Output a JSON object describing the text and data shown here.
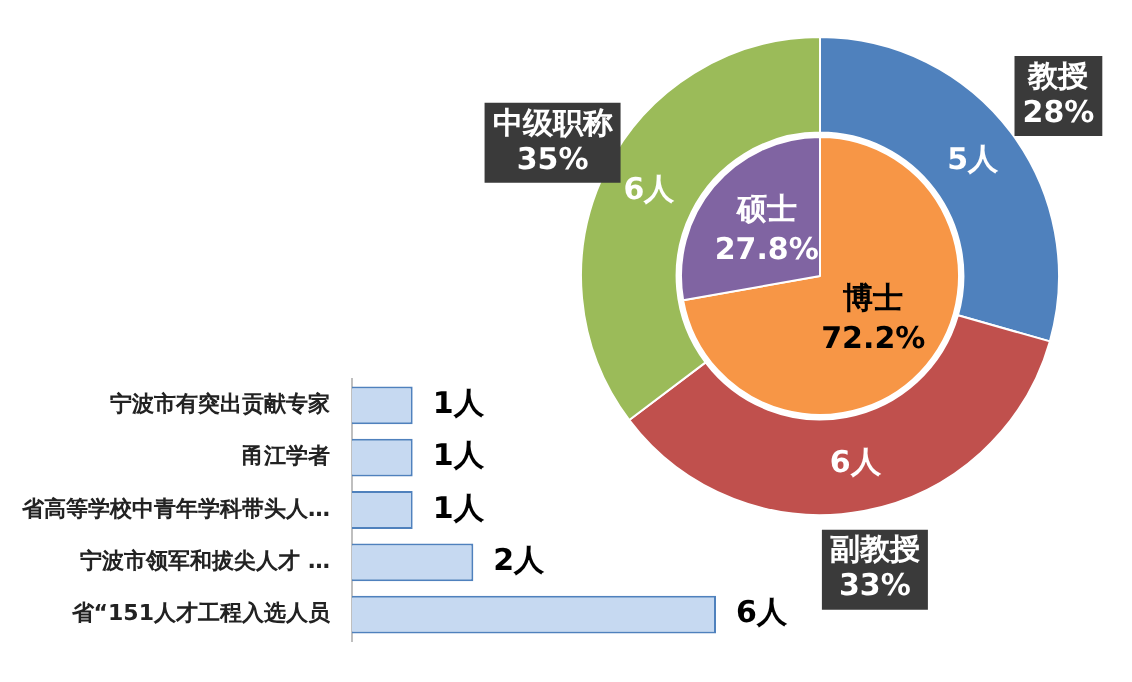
{
  "chart_data": [
    {
      "type": "donut",
      "categories": [
        "教授",
        "副教授",
        "中级职称"
      ],
      "values": [
        5,
        6,
        6
      ],
      "colors": [
        "#4f81bd",
        "#c0504d",
        "#9bbb59"
      ],
      "value_labels": [
        "5人",
        "6人",
        "6人"
      ],
      "annotations": [
        {
          "text": "28%",
          "x": "教授"
        },
        {
          "text": "33%",
          "x": "副教授"
        },
        {
          "text": "35%",
          "x": "中级职称"
        }
      ]
    },
    {
      "type": "pie",
      "categories": [
        "博士",
        "硕士"
      ],
      "values": [
        72.2,
        27.8
      ],
      "colors": [
        "#f79646",
        "#8064a2"
      ],
      "value_labels": [
        "72.2%",
        "27.8%"
      ]
    },
    {
      "type": "bar",
      "orientation": "horizontal",
      "categories": [
        "宁波市有突出贡献专家",
        "甬江学者",
        "省高等学校中青年学科带头人…",
        "宁波市领军和拔尖人才 …",
        "省“151人才工程入选人员"
      ],
      "values": [
        1,
        1,
        1,
        2,
        6
      ],
      "color": "#c6d9f1",
      "value_labels": [
        "1人",
        "1人",
        "1人",
        "2人",
        "6人"
      ],
      "tick_labels": "y"
    }
  ]
}
